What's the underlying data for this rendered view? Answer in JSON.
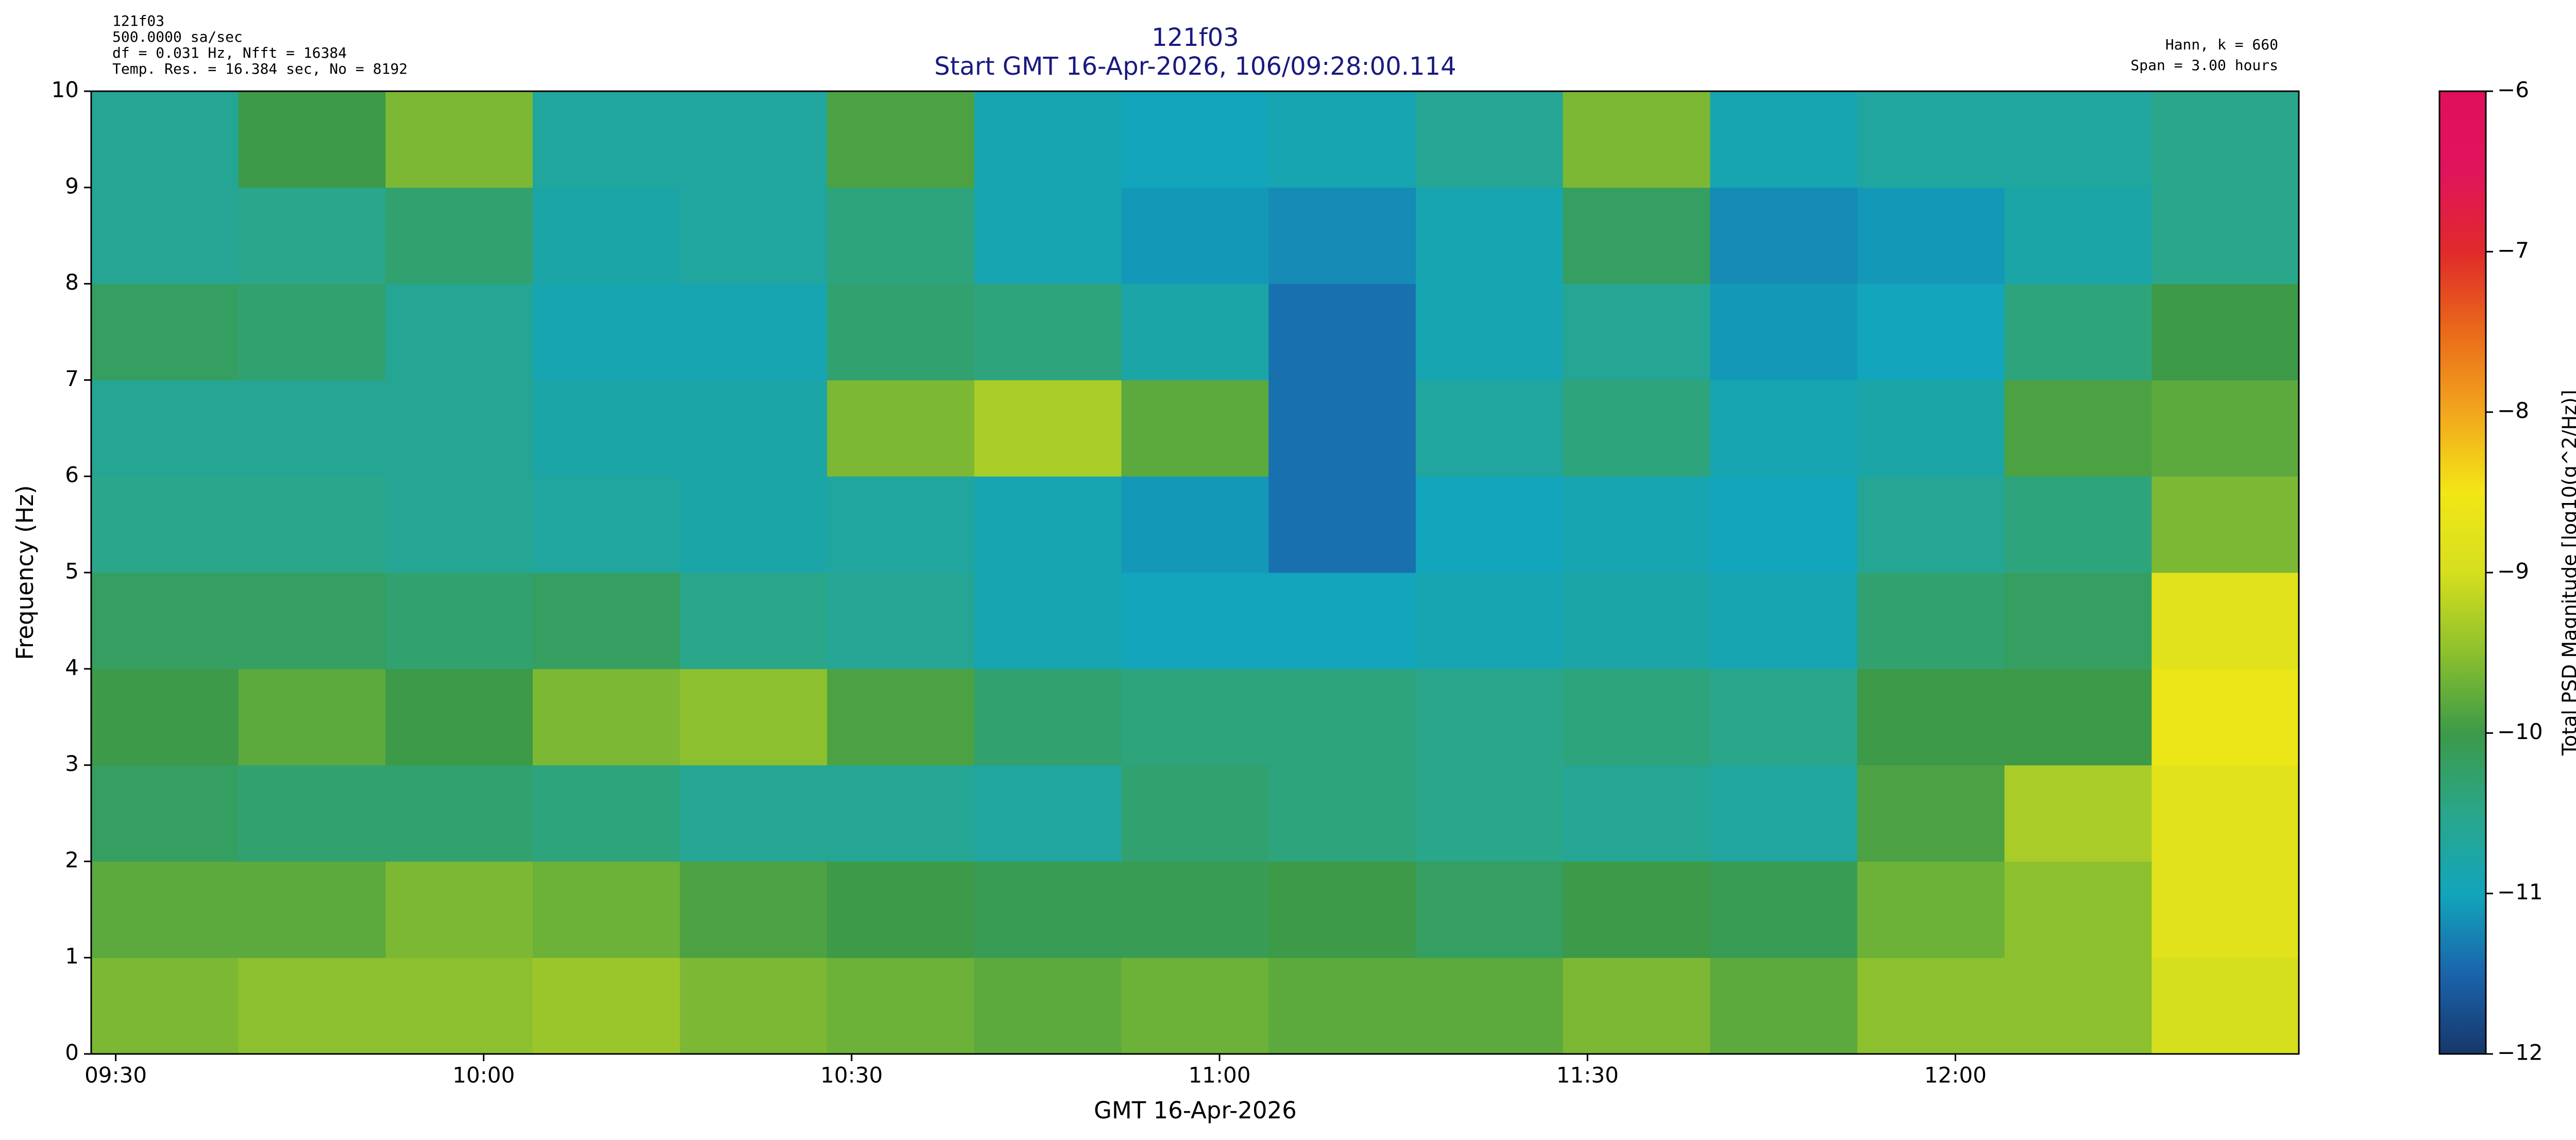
{
  "chart_data": {
    "type": "heatmap",
    "title": "121f03",
    "subtitle": "Start GMT 16-Apr-2026, 106/09:28:00.114",
    "info_left": [
      "121f03",
      "500.0000 sa/sec",
      "df = 0.031 Hz,  Nfft = 16384",
      "Temp. Res. = 16.384 sec, No = 8192"
    ],
    "info_right": [
      "Hann, k = 660",
      "Span = 3.00 hours"
    ],
    "x_label": "GMT 16-Apr-2026",
    "y_label": "Frequency (Hz)",
    "colorbar_label": "Total PSD Magnitude [log10(g^2/Hz)]",
    "xlim": [
      "09:28",
      "12:28"
    ],
    "xticks": [
      "09:30",
      "10:00",
      "10:30",
      "11:00",
      "11:30",
      "12:00"
    ],
    "ylim": [
      0,
      10
    ],
    "yticks": [
      0,
      1,
      2,
      3,
      4,
      5,
      6,
      7,
      8,
      9,
      10
    ],
    "zlim": [
      -12,
      -6
    ],
    "zticks": [
      {
        "value": -12,
        "label": "−12"
      },
      {
        "value": -11,
        "label": "−11"
      },
      {
        "value": -10,
        "label": "−10"
      },
      {
        "value": -9,
        "label": "−9"
      },
      {
        "value": -8,
        "label": "−8"
      },
      {
        "value": -7,
        "label": "−7"
      },
      {
        "value": -6,
        "label": "−6"
      }
    ],
    "colormap": [
      "#17376b",
      "#1a64ab",
      "#12a5bb",
      "#2aa68a",
      "#3c9a48",
      "#8cc02e",
      "#d6df1e",
      "#f2e616",
      "#f2a61e",
      "#ea6a1a",
      "#e02a2a",
      "#e0145c",
      "#e0105c"
    ],
    "x_bins": [
      "09:28",
      "09:40",
      "09:52",
      "10:04",
      "10:16",
      "10:28",
      "10:40",
      "10:52",
      "11:04",
      "11:16",
      "11:28",
      "11:40",
      "11:52",
      "12:04",
      "12:16",
      "12:28"
    ],
    "y_bins": [
      0,
      1,
      2,
      3,
      4,
      5,
      6,
      7,
      8,
      9,
      10
    ],
    "z": [
      [
        -9.6,
        -9.5,
        -9.5,
        -9.4,
        -9.6,
        -9.7,
        -9.8,
        -9.7,
        -9.8,
        -9.8,
        -9.6,
        -9.8,
        -9.5,
        -9.5,
        -9.0
      ],
      [
        -9.8,
        -9.8,
        -9.6,
        -9.7,
        -9.9,
        -10.0,
        -10.1,
        -10.1,
        -10.0,
        -10.2,
        -10.0,
        -10.1,
        -9.7,
        -9.5,
        -8.8
      ],
      [
        -10.2,
        -10.3,
        -10.3,
        -10.4,
        -10.6,
        -10.6,
        -10.7,
        -10.3,
        -10.4,
        -10.5,
        -10.6,
        -10.7,
        -9.9,
        -9.3,
        -8.8
      ],
      [
        -10.0,
        -9.8,
        -10.0,
        -9.6,
        -9.5,
        -9.9,
        -10.3,
        -10.4,
        -10.4,
        -10.5,
        -10.4,
        -10.5,
        -10.0,
        -10.0,
        -8.6
      ],
      [
        -10.2,
        -10.2,
        -10.3,
        -10.2,
        -10.5,
        -10.6,
        -10.9,
        -11.0,
        -11.0,
        -10.9,
        -10.8,
        -10.9,
        -10.3,
        -10.2,
        -8.8
      ],
      [
        -10.5,
        -10.5,
        -10.6,
        -10.7,
        -10.8,
        -10.7,
        -10.9,
        -11.1,
        -11.4,
        -11.0,
        -10.9,
        -11.0,
        -10.6,
        -10.4,
        -9.6
      ],
      [
        -10.6,
        -10.6,
        -10.6,
        -10.8,
        -10.8,
        -9.6,
        -9.3,
        -9.8,
        -11.4,
        -10.7,
        -10.4,
        -10.9,
        -10.8,
        -9.9,
        -9.8
      ],
      [
        -10.2,
        -10.3,
        -10.6,
        -10.9,
        -10.9,
        -10.3,
        -10.4,
        -10.8,
        -11.4,
        -10.9,
        -10.6,
        -11.1,
        -11.0,
        -10.4,
        -10.0
      ],
      [
        -10.6,
        -10.5,
        -10.3,
        -10.8,
        -10.7,
        -10.4,
        -10.9,
        -11.1,
        -11.2,
        -10.9,
        -10.2,
        -11.2,
        -11.1,
        -10.8,
        -10.5
      ],
      [
        -10.6,
        -10.0,
        -9.6,
        -10.7,
        -10.7,
        -9.9,
        -10.9,
        -11.0,
        -10.9,
        -10.6,
        -9.6,
        -10.9,
        -10.7,
        -10.7,
        -10.5
      ]
    ]
  }
}
